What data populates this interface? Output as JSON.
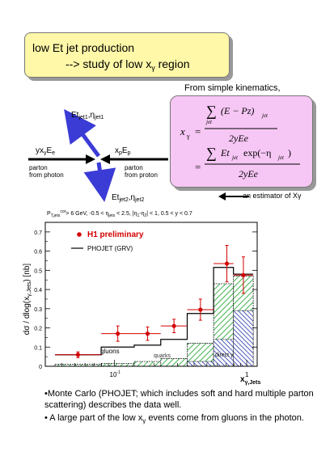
{
  "title": {
    "line1": "low Et jet production",
    "line2_prefix": "--> study of low x",
    "line2_sub": "γ",
    "line2_suffix": " region"
  },
  "kinematics_note": "From simple kinematics,",
  "formula": {
    "lhs": "x",
    "lhs_sub": "γ",
    "sum": "∑",
    "sum_sub": "jet",
    "num1": "(E − Pz)",
    "num1_sub": "jet",
    "den": "2yEe",
    "eq": "=",
    "num2_a": "Et",
    "num2_a_sub": "jet",
    "num2_b": "exp(−η",
    "num2_b_sub": "jet",
    "num2_c": ")"
  },
  "estimator_label": "an estimator of Xγ",
  "diagram": {
    "jet1": "Et",
    "jet1_sub": "jet1",
    "jet1_eta": ",η",
    "jet1_eta_sub": "jet1",
    "jet2": "Et",
    "jet2_sub": "jet2",
    "jet2_eta": ",η",
    "jet2_eta_sub": "jet2",
    "photon_label": "yx",
    "photon_label_sub": "γ",
    "photon_label_e": "E",
    "photon_label_e_sub": "e",
    "proton_label": "x",
    "proton_label_sub": "p",
    "proton_label_e": "E",
    "proton_label_e_sub": "p",
    "photon_desc1": "parton",
    "photon_desc2": "from photon",
    "proton_desc1": "parton",
    "proton_desc2": "from proton"
  },
  "chart_data": {
    "type": "bar",
    "cuts": "P_Tjets^cor > 6 GeV,  -0.5 < η_jets < 2.5,  |η1-η2| < 1,  0.5 < y < 0.7",
    "cuts_text": "P",
    "cuts_text_sub": "T,jets",
    "cuts_text_sup": "cor",
    "cuts_rest": "> 6 GeV,  -0.5 < η",
    "cuts_rest_sub": "jets",
    "cuts_rest2": " < 2.5,  |η",
    "cuts_rest2_sub": "1",
    "cuts_rest3": "-η",
    "cuts_rest3_sub": "2",
    "cuts_rest4": "| < 1,  0.5 < y < 0.7",
    "ylabel": "dσ / dlog(x_γ,Jets) [nb]",
    "ylabel_main": "dσ / dlog(x",
    "ylabel_sub": "γ,Jets",
    "ylabel_end": ") [nb]",
    "xlabel": "x",
    "xlabel_sub": "γ,Jets",
    "xscale": "log",
    "xlim": [
      0.03,
      1.2
    ],
    "ylim": [
      0,
      0.75
    ],
    "yticks": [
      0,
      0.1,
      0.2,
      0.3,
      0.4,
      0.5,
      0.6,
      0.7
    ],
    "ytick_labels": [
      "0",
      "0.1",
      "0.2",
      "0.3",
      "0.4",
      "0.5",
      "0.6",
      "0.7"
    ],
    "xtick_labels": [
      "10",
      "-1",
      "1"
    ],
    "bin_edges": [
      0.0355,
      0.0794,
      0.141,
      0.224,
      0.355,
      0.562,
      0.794,
      1.12
    ],
    "h1_data": {
      "name": "H1 preliminary",
      "x": [
        0.053,
        0.106,
        0.178,
        0.282,
        0.447,
        0.708,
        0.944
      ],
      "y": [
        0.06,
        0.17,
        0.17,
        0.21,
        0.295,
        0.535,
        0.475
      ],
      "err": [
        0.015,
        0.04,
        0.035,
        0.035,
        0.055,
        0.095,
        0.095
      ]
    },
    "phojet_total": {
      "name": "PHOJET (GRV)",
      "y": [
        0.06,
        0.1,
        0.11,
        0.14,
        0.275,
        0.515,
        0.48
      ]
    },
    "phojet_quarks": [
      0.01,
      0.015,
      0.025,
      0.04,
      0.12,
      0.43,
      0.47
    ],
    "phojet_direct": [
      0,
      0,
      0,
      0,
      0.025,
      0.14,
      0.29
    ],
    "region_labels": {
      "gluons": "gluons",
      "quarks": "quarks",
      "direct": "direct γ"
    }
  },
  "footer": {
    "p1": "•Monte Carlo (PHOJET; which includes soft and hard multiple parton scattering) describes the data well.",
    "p2_a": "• A large part of the low x",
    "p2_sub": "γ",
    "p2_b": " events come from gluons in the photon."
  },
  "colors": {
    "title_bg": "#fff8a8",
    "formula_bg": "#f6c6f4",
    "jet_arrow": "#3b3bd6",
    "data_point": "#d40000",
    "quark_hatch": "#3fb34f",
    "direct_hatch": "#2233aa"
  }
}
